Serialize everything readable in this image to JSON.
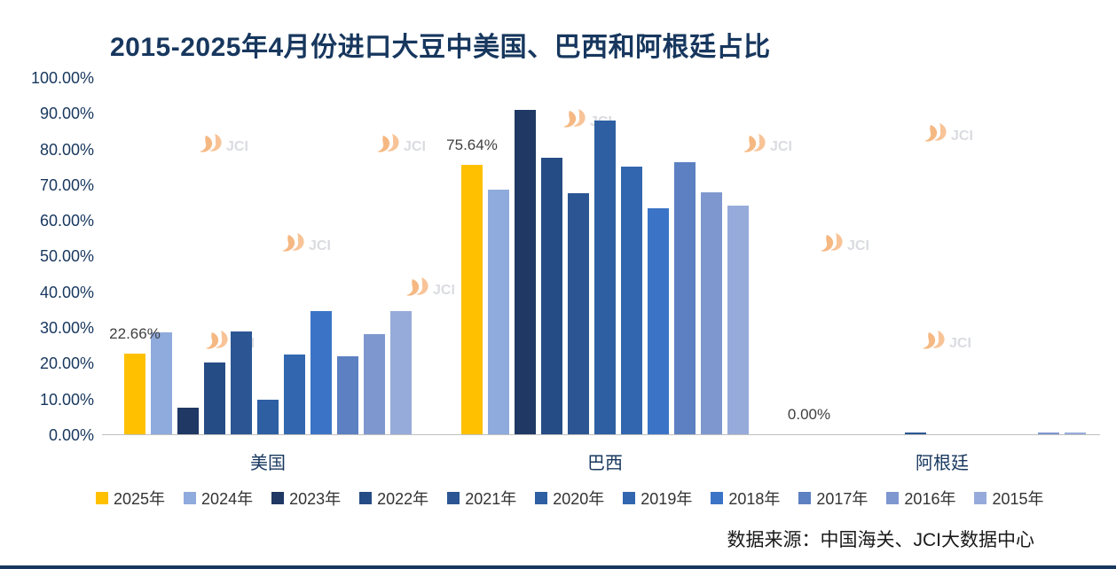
{
  "title": "2015-2025年4月份进口大豆中美国、巴西和阿根廷占比",
  "source": "数据来源：中国海关、JCI大数据中心",
  "watermark_text": "JCI",
  "chart_data": {
    "type": "bar",
    "title": "2015-2025年4月份进口大豆中美国、巴西和阿根廷占比",
    "xlabel": "",
    "ylabel": "",
    "categories": [
      "美国",
      "巴西",
      "阿根廷"
    ],
    "series": [
      {
        "name": "2025年",
        "color": "#FFC000",
        "values": [
          22.66,
          75.64,
          0.0
        ],
        "labels": [
          "22.66%",
          "75.64%",
          "0.00%"
        ]
      },
      {
        "name": "2024年",
        "color": "#8FAADC",
        "values": [
          28.5,
          68.7,
          0.0
        ]
      },
      {
        "name": "2023年",
        "color": "#1F3864",
        "values": [
          7.4,
          91.0,
          0.0
        ]
      },
      {
        "name": "2022年",
        "color": "#264C85",
        "values": [
          20.1,
          77.7,
          0.0
        ]
      },
      {
        "name": "2021年",
        "color": "#2C5693",
        "values": [
          28.8,
          67.7,
          0.6
        ]
      },
      {
        "name": "2020年",
        "color": "#2E5FA3",
        "values": [
          9.7,
          88.1,
          0.0
        ]
      },
      {
        "name": "2019年",
        "color": "#3267AF",
        "values": [
          22.3,
          75.2,
          0.0
        ]
      },
      {
        "name": "2018年",
        "color": "#3B74C6",
        "values": [
          34.5,
          63.5,
          0.0
        ]
      },
      {
        "name": "2017年",
        "color": "#5C80C2",
        "values": [
          21.8,
          76.4,
          0.0
        ]
      },
      {
        "name": "2016年",
        "color": "#7E97CF",
        "values": [
          28.0,
          68.0,
          0.4
        ]
      },
      {
        "name": "2015年",
        "color": "#97ABDA",
        "values": [
          34.7,
          64.3,
          0.6
        ]
      }
    ],
    "ylim": [
      0,
      100
    ],
    "yticks": [
      "100.00%",
      "90.00%",
      "80.00%",
      "70.00%",
      "60.00%",
      "50.00%",
      "40.00%",
      "30.00%",
      "20.00%",
      "10.00%",
      "0.00%"
    ],
    "grid": false,
    "legend_position": "bottom"
  }
}
